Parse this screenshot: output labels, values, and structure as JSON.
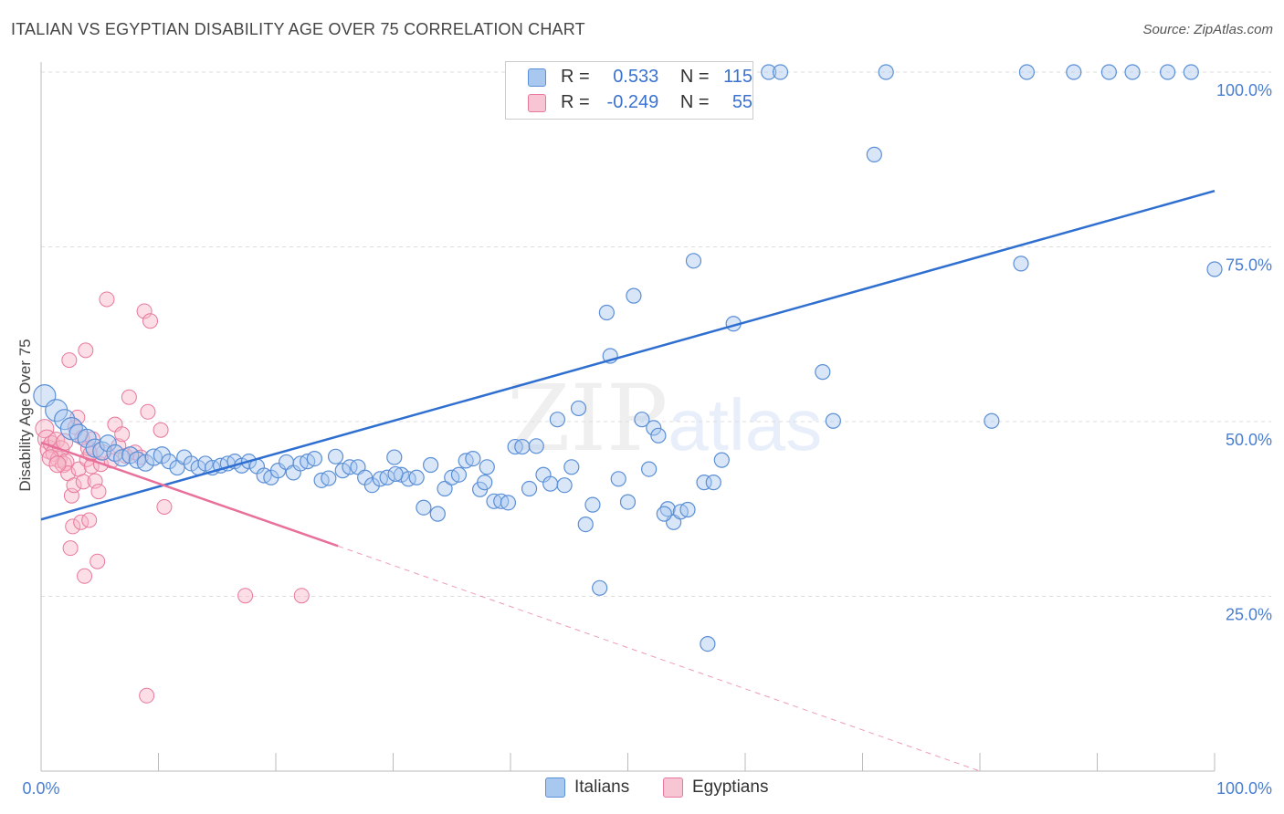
{
  "header": {
    "title": "ITALIAN VS EGYPTIAN DISABILITY AGE OVER 75 CORRELATION CHART",
    "source": "Source: ZipAtlas.com"
  },
  "watermark": {
    "zip": "ZIP",
    "atlas": "atlas"
  },
  "legend": {
    "r_label": "R =",
    "n_label": "N =",
    "italians": {
      "r": "0.533",
      "n": "115"
    },
    "egyptians": {
      "r": "-0.249",
      "n": "55"
    }
  },
  "bottom_legend": {
    "italians": "Italians",
    "egyptians": "Egyptians"
  },
  "colors": {
    "italians_fill": "#a9c8f0",
    "italians_stroke": "#5b8fd6",
    "italians_line": "#2f6fd0",
    "egyptians_fill": "#f7b6c8",
    "egyptians_stroke": "#e8789b",
    "egyptians_line": "#e8709a",
    "tick_text": "#4a7fd0"
  },
  "chart_data": {
    "type": "scatter",
    "title": "ITALIAN VS EGYPTIAN DISABILITY AGE OVER 75 CORRELATION CHART",
    "xlabel": "",
    "ylabel": "Disability Age Over 75",
    "xlim": [
      0,
      100
    ],
    "ylim": [
      0,
      102
    ],
    "x_tick_labels": [
      "0.0%",
      "100.0%"
    ],
    "y_ticks": [
      {
        "value": 25,
        "label": "25.0%"
      },
      {
        "value": 50,
        "label": "50.0%"
      },
      {
        "value": 75,
        "label": "75.0%"
      },
      {
        "value": 100,
        "label": "100.0%"
      }
    ],
    "grid": "horizontal dashed",
    "legend_position": "top-center",
    "series": [
      {
        "name": "Italians",
        "trend": {
          "x": [
            0,
            100
          ],
          "y": [
            36,
            83
          ]
        },
        "points": [
          [
            0.3,
            53.7,
            12
          ],
          [
            1.3,
            51.6,
            12
          ],
          [
            2.0,
            50.3,
            11
          ],
          [
            2.6,
            49.0,
            12
          ],
          [
            3.2,
            48.3,
            10
          ],
          [
            3.9,
            47.6,
            10
          ],
          [
            4.6,
            46.2,
            10
          ],
          [
            5.2,
            45.8,
            10
          ],
          [
            5.7,
            46.9,
            9
          ],
          [
            6.3,
            45.5,
            9
          ],
          [
            6.9,
            44.8,
            9
          ],
          [
            7.6,
            45.2,
            9
          ],
          [
            8.2,
            44.5,
            9
          ],
          [
            8.9,
            44.1,
            9
          ],
          [
            9.6,
            44.9,
            9
          ],
          [
            10.3,
            45.2,
            9
          ],
          [
            10.9,
            44.3,
            8
          ],
          [
            11.6,
            43.4,
            8
          ],
          [
            12.2,
            44.9,
            8
          ],
          [
            12.8,
            44.0,
            8
          ],
          [
            13.4,
            43.4,
            8
          ],
          [
            14.0,
            44.0,
            8
          ],
          [
            14.6,
            43.4,
            8
          ],
          [
            15.3,
            43.7,
            8
          ],
          [
            15.9,
            44.0,
            8
          ],
          [
            16.5,
            44.3,
            8
          ],
          [
            17.1,
            43.7,
            8
          ],
          [
            17.7,
            44.3,
            8
          ],
          [
            18.4,
            43.6,
            8
          ],
          [
            19.0,
            42.3,
            8
          ],
          [
            19.6,
            42.0,
            8
          ],
          [
            20.2,
            43.0,
            8
          ],
          [
            20.9,
            44.2,
            8
          ],
          [
            21.5,
            42.7,
            8
          ],
          [
            22.1,
            44.0,
            8
          ],
          [
            22.7,
            44.3,
            8
          ],
          [
            23.3,
            44.7,
            8
          ],
          [
            23.9,
            41.6,
            8
          ],
          [
            24.5,
            41.9,
            8
          ],
          [
            25.1,
            45.0,
            8
          ],
          [
            25.7,
            43.0,
            8
          ],
          [
            26.3,
            43.5,
            8
          ],
          [
            27.0,
            43.5,
            8
          ],
          [
            27.6,
            42.0,
            8
          ],
          [
            28.2,
            40.9,
            8
          ],
          [
            28.9,
            41.8,
            8
          ],
          [
            29.5,
            42.0,
            8
          ],
          [
            30.1,
            44.9,
            8
          ],
          [
            30.7,
            42.4,
            8
          ],
          [
            31.3,
            41.8,
            8
          ],
          [
            32.0,
            42.0,
            8
          ],
          [
            32.6,
            37.7,
            8
          ],
          [
            33.2,
            43.8,
            8
          ],
          [
            33.8,
            36.8,
            8
          ],
          [
            34.4,
            40.4,
            8
          ],
          [
            35.0,
            42.0,
            8
          ],
          [
            35.6,
            42.4,
            8
          ],
          [
            36.2,
            44.4,
            8
          ],
          [
            36.8,
            44.7,
            8
          ],
          [
            37.4,
            40.3,
            8
          ],
          [
            38.0,
            43.5,
            8
          ],
          [
            38.6,
            38.6,
            8
          ],
          [
            39.2,
            38.6,
            8
          ],
          [
            39.8,
            38.4,
            8
          ],
          [
            40.4,
            46.4,
            8
          ],
          [
            41.0,
            46.4,
            8
          ],
          [
            41.6,
            40.4,
            8
          ],
          [
            42.2,
            46.5,
            8
          ],
          [
            42.8,
            42.4,
            8
          ],
          [
            43.4,
            41.1,
            8
          ],
          [
            44.0,
            50.3,
            8
          ],
          [
            44.6,
            40.9,
            8
          ],
          [
            45.2,
            43.5,
            8
          ],
          [
            45.8,
            51.9,
            8
          ],
          [
            46.4,
            35.3,
            8
          ],
          [
            47.0,
            38.1,
            8
          ],
          [
            47.6,
            26.2,
            8
          ],
          [
            48.2,
            65.6,
            8
          ],
          [
            48.5,
            59.4,
            8
          ],
          [
            49.2,
            41.8,
            8
          ],
          [
            50.0,
            38.5,
            8
          ],
          [
            50.5,
            68.0,
            8
          ],
          [
            51.2,
            50.3,
            8
          ],
          [
            51.8,
            43.2,
            8
          ],
          [
            52.2,
            49.1,
            8
          ],
          [
            52.6,
            48.0,
            8
          ],
          [
            53.4,
            37.5,
            8
          ],
          [
            53.9,
            35.6,
            8
          ],
          [
            54.5,
            37.1,
            8
          ],
          [
            55.1,
            37.4,
            8
          ],
          [
            55.6,
            73.0,
            8
          ],
          [
            56.5,
            41.3,
            8
          ],
          [
            56.8,
            18.2,
            8
          ],
          [
            58.0,
            44.5,
            8
          ],
          [
            59.0,
            64.0,
            8
          ],
          [
            60.0,
            100.0,
            8
          ],
          [
            62.0,
            100.0,
            8
          ],
          [
            63.0,
            100.0,
            8
          ],
          [
            66.6,
            57.1,
            8
          ],
          [
            67.5,
            50.1,
            8
          ],
          [
            71.0,
            88.2,
            8
          ],
          [
            72.0,
            100.0,
            8
          ],
          [
            81.0,
            50.1,
            8
          ],
          [
            83.5,
            72.6,
            8
          ],
          [
            84.0,
            100.0,
            8
          ],
          [
            88.0,
            100.0,
            8
          ],
          [
            91.0,
            100.0,
            8
          ],
          [
            93.0,
            100.0,
            8
          ],
          [
            96.0,
            100.0,
            8
          ],
          [
            98.0,
            100.0,
            8
          ],
          [
            100.0,
            71.8,
            8
          ],
          [
            57.3,
            41.3,
            8
          ],
          [
            53.1,
            36.8,
            8
          ],
          [
            37.8,
            41.3,
            8
          ],
          [
            30.2,
            42.5,
            8
          ]
        ]
      },
      {
        "name": "Egyptians",
        "trend": {
          "x": [
            0,
            25.3
          ],
          "y": [
            47.0,
            32.2
          ]
        },
        "trend_extension": {
          "x": [
            25.3,
            80
          ],
          "y": [
            32.2,
            0
          ]
        },
        "points": [
          [
            0.3,
            49.0,
            10
          ],
          [
            0.5,
            47.5,
            10
          ],
          [
            0.7,
            46.0,
            10
          ],
          [
            0.9,
            46.8,
            9
          ],
          [
            1.1,
            45.5,
            9
          ],
          [
            1.3,
            47.3,
            9
          ],
          [
            1.5,
            44.6,
            9
          ],
          [
            1.7,
            46.1,
            9
          ],
          [
            1.9,
            43.9,
            9
          ],
          [
            2.1,
            44.2,
            9
          ],
          [
            2.3,
            42.6,
            8
          ],
          [
            2.4,
            58.8,
            8
          ],
          [
            2.5,
            31.9,
            8
          ],
          [
            2.6,
            39.4,
            8
          ],
          [
            2.7,
            35.0,
            8
          ],
          [
            2.8,
            40.9,
            8
          ],
          [
            2.9,
            49.2,
            8
          ],
          [
            3.1,
            50.6,
            8
          ],
          [
            3.2,
            43.2,
            8
          ],
          [
            3.4,
            35.6,
            8
          ],
          [
            3.5,
            47.7,
            8
          ],
          [
            3.6,
            41.4,
            8
          ],
          [
            3.7,
            27.9,
            8
          ],
          [
            3.8,
            60.2,
            8
          ],
          [
            3.9,
            44.6,
            8
          ],
          [
            4.0,
            46.2,
            8
          ],
          [
            4.1,
            35.9,
            8
          ],
          [
            4.2,
            45.4,
            8
          ],
          [
            4.3,
            43.6,
            8
          ],
          [
            4.4,
            47.5,
            8
          ],
          [
            4.6,
            41.5,
            8
          ],
          [
            4.8,
            30.0,
            8
          ],
          [
            4.9,
            40.0,
            8
          ],
          [
            5.1,
            43.9,
            8
          ],
          [
            5.3,
            45.6,
            8
          ],
          [
            5.6,
            67.5,
            8
          ],
          [
            6.0,
            44.4,
            8
          ],
          [
            6.3,
            49.6,
            8
          ],
          [
            6.6,
            46.5,
            8
          ],
          [
            6.9,
            48.2,
            8
          ],
          [
            7.2,
            45.1,
            8
          ],
          [
            7.5,
            53.5,
            8
          ],
          [
            8.0,
            45.6,
            8
          ],
          [
            8.5,
            44.9,
            8
          ],
          [
            8.8,
            65.8,
            8
          ],
          [
            9.0,
            10.8,
            8
          ],
          [
            9.1,
            51.4,
            8
          ],
          [
            9.3,
            64.4,
            8
          ],
          [
            10.2,
            48.8,
            8
          ],
          [
            10.5,
            37.8,
            8
          ],
          [
            17.4,
            25.1,
            8
          ],
          [
            22.2,
            25.1,
            8
          ],
          [
            0.8,
            44.8,
            9
          ],
          [
            1.4,
            43.9,
            9
          ],
          [
            2.0,
            47.1,
            9
          ]
        ]
      }
    ]
  }
}
